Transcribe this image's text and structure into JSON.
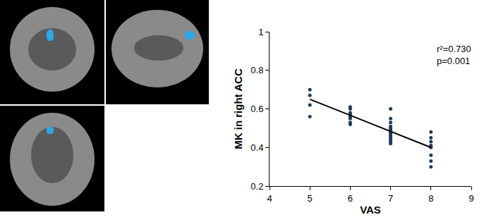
{
  "chart_data": {
    "type": "scatter",
    "x_label": "VAS",
    "y_label": "MK in right ACC",
    "xlim": [
      4,
      9
    ],
    "xticks": [
      4,
      5,
      6,
      7,
      8,
      9
    ],
    "ylim": [
      0.2,
      1
    ],
    "yticks": [
      0.2,
      0.4,
      0.6,
      0.8,
      1
    ],
    "grid": false,
    "annotations": [
      "r²=0.730",
      "p=0.001"
    ],
    "series": [
      {
        "type": "scatter",
        "marker": "circle",
        "color": "#1f3b5c",
        "x": [
          5,
          5,
          5,
          5,
          6,
          6,
          6,
          6,
          6,
          6,
          6,
          6,
          7,
          7,
          7,
          7,
          7,
          7,
          7,
          7,
          7,
          7,
          7,
          7,
          7,
          8,
          8,
          8,
          8,
          8,
          8,
          8,
          8
        ],
        "values": [
          0.7,
          0.67,
          0.62,
          0.56,
          0.61,
          0.6,
          0.58,
          0.57,
          0.56,
          0.55,
          0.53,
          0.52,
          0.6,
          0.55,
          0.53,
          0.51,
          0.5,
          0.49,
          0.48,
          0.47,
          0.46,
          0.45,
          0.44,
          0.43,
          0.42,
          0.48,
          0.45,
          0.43,
          0.41,
          0.4,
          0.36,
          0.33,
          0.3
        ]
      },
      {
        "type": "line",
        "line_style": "solid",
        "color": "#000000",
        "x": [
          5,
          8
        ],
        "values": [
          0.65,
          0.4
        ]
      }
    ]
  }
}
